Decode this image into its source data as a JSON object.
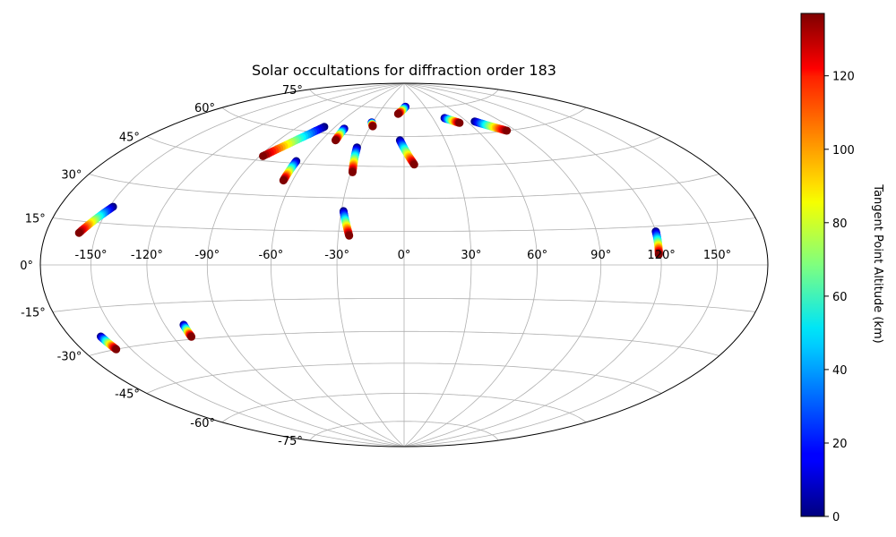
{
  "chart_data": {
    "type": "scatter",
    "projection": "hammer",
    "title": "Solar occultations for diffraction order 183",
    "lon_ticks": [
      "-150°",
      "-120°",
      "-90°",
      "-60°",
      "-30°",
      "0°",
      "30°",
      "60°",
      "90°",
      "120°",
      "150°"
    ],
    "lon_tick_values": [
      -150,
      -120,
      -90,
      -60,
      -30,
      0,
      30,
      60,
      90,
      120,
      150
    ],
    "lat_ticks": [
      "-75°",
      "-60°",
      "-45°",
      "-30°",
      "-15°",
      "0°",
      "15°",
      "30°",
      "45°",
      "60°",
      "75°"
    ],
    "lat_tick_values": [
      -75,
      -60,
      -45,
      -30,
      -15,
      0,
      15,
      30,
      45,
      60,
      75
    ],
    "grid": true,
    "colorbar": {
      "label": "Tangent Point Altitude (km)",
      "min": 0,
      "max": 137,
      "ticks": [
        0,
        20,
        40,
        60,
        80,
        100,
        120
      ],
      "tick_labels": [
        "0",
        "20",
        "40",
        "60",
        "80",
        "100",
        "120"
      ],
      "colormap": "jet"
    },
    "tracks": [
      {
        "start": [
          -148,
          21
        ],
        "end": [
          -160,
          11
        ]
      },
      {
        "start": [
          -69,
          63
        ],
        "end": [
          -88,
          47
        ]
      },
      {
        "start": [
          -65,
          46
        ],
        "end": [
          -65,
          37
        ]
      },
      {
        "start": [
          -51,
          63
        ],
        "end": [
          -50,
          57
        ]
      },
      {
        "start": [
          -31,
          67
        ],
        "end": [
          -28,
          65
        ]
      },
      {
        "start": [
          -32,
          54
        ],
        "end": [
          -29,
          42
        ]
      },
      {
        "start": [
          -29,
          24
        ],
        "end": [
          -25,
          13
        ]
      },
      {
        "start": [
          -3,
          58
        ],
        "end": [
          6,
          46
        ]
      },
      {
        "start": [
          2,
          76
        ],
        "end": [
          -7,
          72
        ]
      },
      {
        "start": [
          42,
          69
        ],
        "end": [
          52,
          66
        ]
      },
      {
        "start": [
          67,
          66
        ],
        "end": [
          83,
          60
        ]
      },
      {
        "start": [
          120,
          13
        ],
        "end": [
          119,
          4
        ]
      },
      {
        "start": [
          -161,
          -25
        ],
        "end": [
          -159,
          -30
        ]
      },
      {
        "start": [
          -110,
          -24
        ],
        "end": [
          -110,
          -29
        ]
      }
    ]
  }
}
